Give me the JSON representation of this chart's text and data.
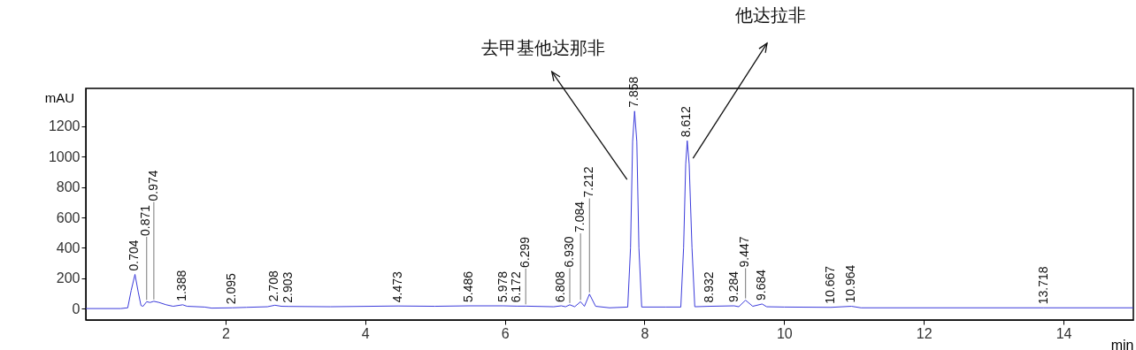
{
  "chart_data": {
    "type": "line",
    "xlabel": "min",
    "ylabel": "mAU",
    "x": [
      0,
      0.5,
      0.6,
      0.65,
      0.704,
      0.75,
      0.79,
      0.82,
      0.871,
      0.92,
      0.974,
      1.05,
      1.15,
      1.25,
      1.388,
      1.45,
      1.7,
      1.8,
      2.095,
      2.3,
      2.6,
      2.708,
      2.8,
      2.903,
      3.5,
      4.473,
      5,
      5.486,
      5.978,
      6.172,
      6.299,
      6.7,
      6.808,
      6.87,
      6.93,
      7.0,
      7.084,
      7.14,
      7.212,
      7.3,
      7.5,
      7.76,
      7.8,
      7.83,
      7.858,
      7.89,
      7.92,
      7.96,
      8.3,
      8.52,
      8.56,
      8.59,
      8.612,
      8.64,
      8.68,
      8.72,
      8.932,
      9.284,
      9.35,
      9.447,
      9.55,
      9.684,
      9.75,
      10,
      10.667,
      10.964,
      11.1,
      13.718,
      15
    ],
    "series": [
      {
        "color": "#3b3bdb",
        "values": [
          0,
          0,
          5,
          120,
          225,
          110,
          20,
          15,
          45,
          40,
          48,
          40,
          25,
          15,
          25,
          15,
          10,
          3,
          5,
          8,
          12,
          22,
          15,
          14,
          12,
          17,
          15,
          18,
          18,
          16,
          16,
          12,
          18,
          12,
          25,
          12,
          45,
          15,
          95,
          15,
          5,
          10,
          400,
          1100,
          1300,
          1100,
          400,
          10,
          10,
          10,
          400,
          950,
          1105,
          950,
          400,
          12,
          15,
          18,
          12,
          55,
          15,
          30,
          12,
          10,
          8,
          15,
          5,
          5,
          5
        ]
      }
    ],
    "xlim": [
      0,
      15
    ],
    "ylim": [
      -75,
      1450
    ],
    "xticks": [
      2,
      4,
      6,
      8,
      10,
      12,
      14
    ],
    "yticks": [
      0,
      200,
      400,
      600,
      800,
      1000,
      1200
    ],
    "grid": false,
    "legend": false,
    "annotations": [
      {
        "text": "去甲基他达那非",
        "x": 7.75,
        "y": 850
      },
      {
        "text": "他达拉非",
        "x": 8.64,
        "y": 950
      },
      {
        "text": "0.704",
        "x": 0.704,
        "y": 225
      },
      {
        "text": "0.871",
        "x": 0.871,
        "y": 45
      },
      {
        "text": "0.974",
        "x": 0.974,
        "y": 48
      },
      {
        "text": "1.388",
        "x": 1.388,
        "y": 25
      },
      {
        "text": "2.095",
        "x": 2.095,
        "y": 5
      },
      {
        "text": "2.708",
        "x": 2.708,
        "y": 22
      },
      {
        "text": "2.903",
        "x": 2.903,
        "y": 14
      },
      {
        "text": "4.473",
        "x": 4.473,
        "y": 17
      },
      {
        "text": "5.486",
        "x": 5.486,
        "y": 18
      },
      {
        "text": "5.978",
        "x": 5.978,
        "y": 18
      },
      {
        "text": "6.172",
        "x": 6.172,
        "y": 16
      },
      {
        "text": "6.299",
        "x": 6.299,
        "y": 16
      },
      {
        "text": "6.808",
        "x": 6.808,
        "y": 18
      },
      {
        "text": "6.930",
        "x": 6.93,
        "y": 25
      },
      {
        "text": "7.084",
        "x": 7.084,
        "y": 45
      },
      {
        "text": "7.212",
        "x": 7.212,
        "y": 95
      },
      {
        "text": "7.858",
        "x": 7.858,
        "y": 1300
      },
      {
        "text": "8.612",
        "x": 8.612,
        "y": 1105
      },
      {
        "text": "8.932",
        "x": 8.932,
        "y": 15
      },
      {
        "text": "9.284",
        "x": 9.284,
        "y": 18
      },
      {
        "text": "9.447",
        "x": 9.447,
        "y": 55
      },
      {
        "text": "9.684",
        "x": 9.684,
        "y": 30
      },
      {
        "text": "10.667",
        "x": 10.667,
        "y": 8
      },
      {
        "text": "10.964",
        "x": 10.964,
        "y": 15
      },
      {
        "text": "13.718",
        "x": 13.718,
        "y": 5
      }
    ]
  }
}
